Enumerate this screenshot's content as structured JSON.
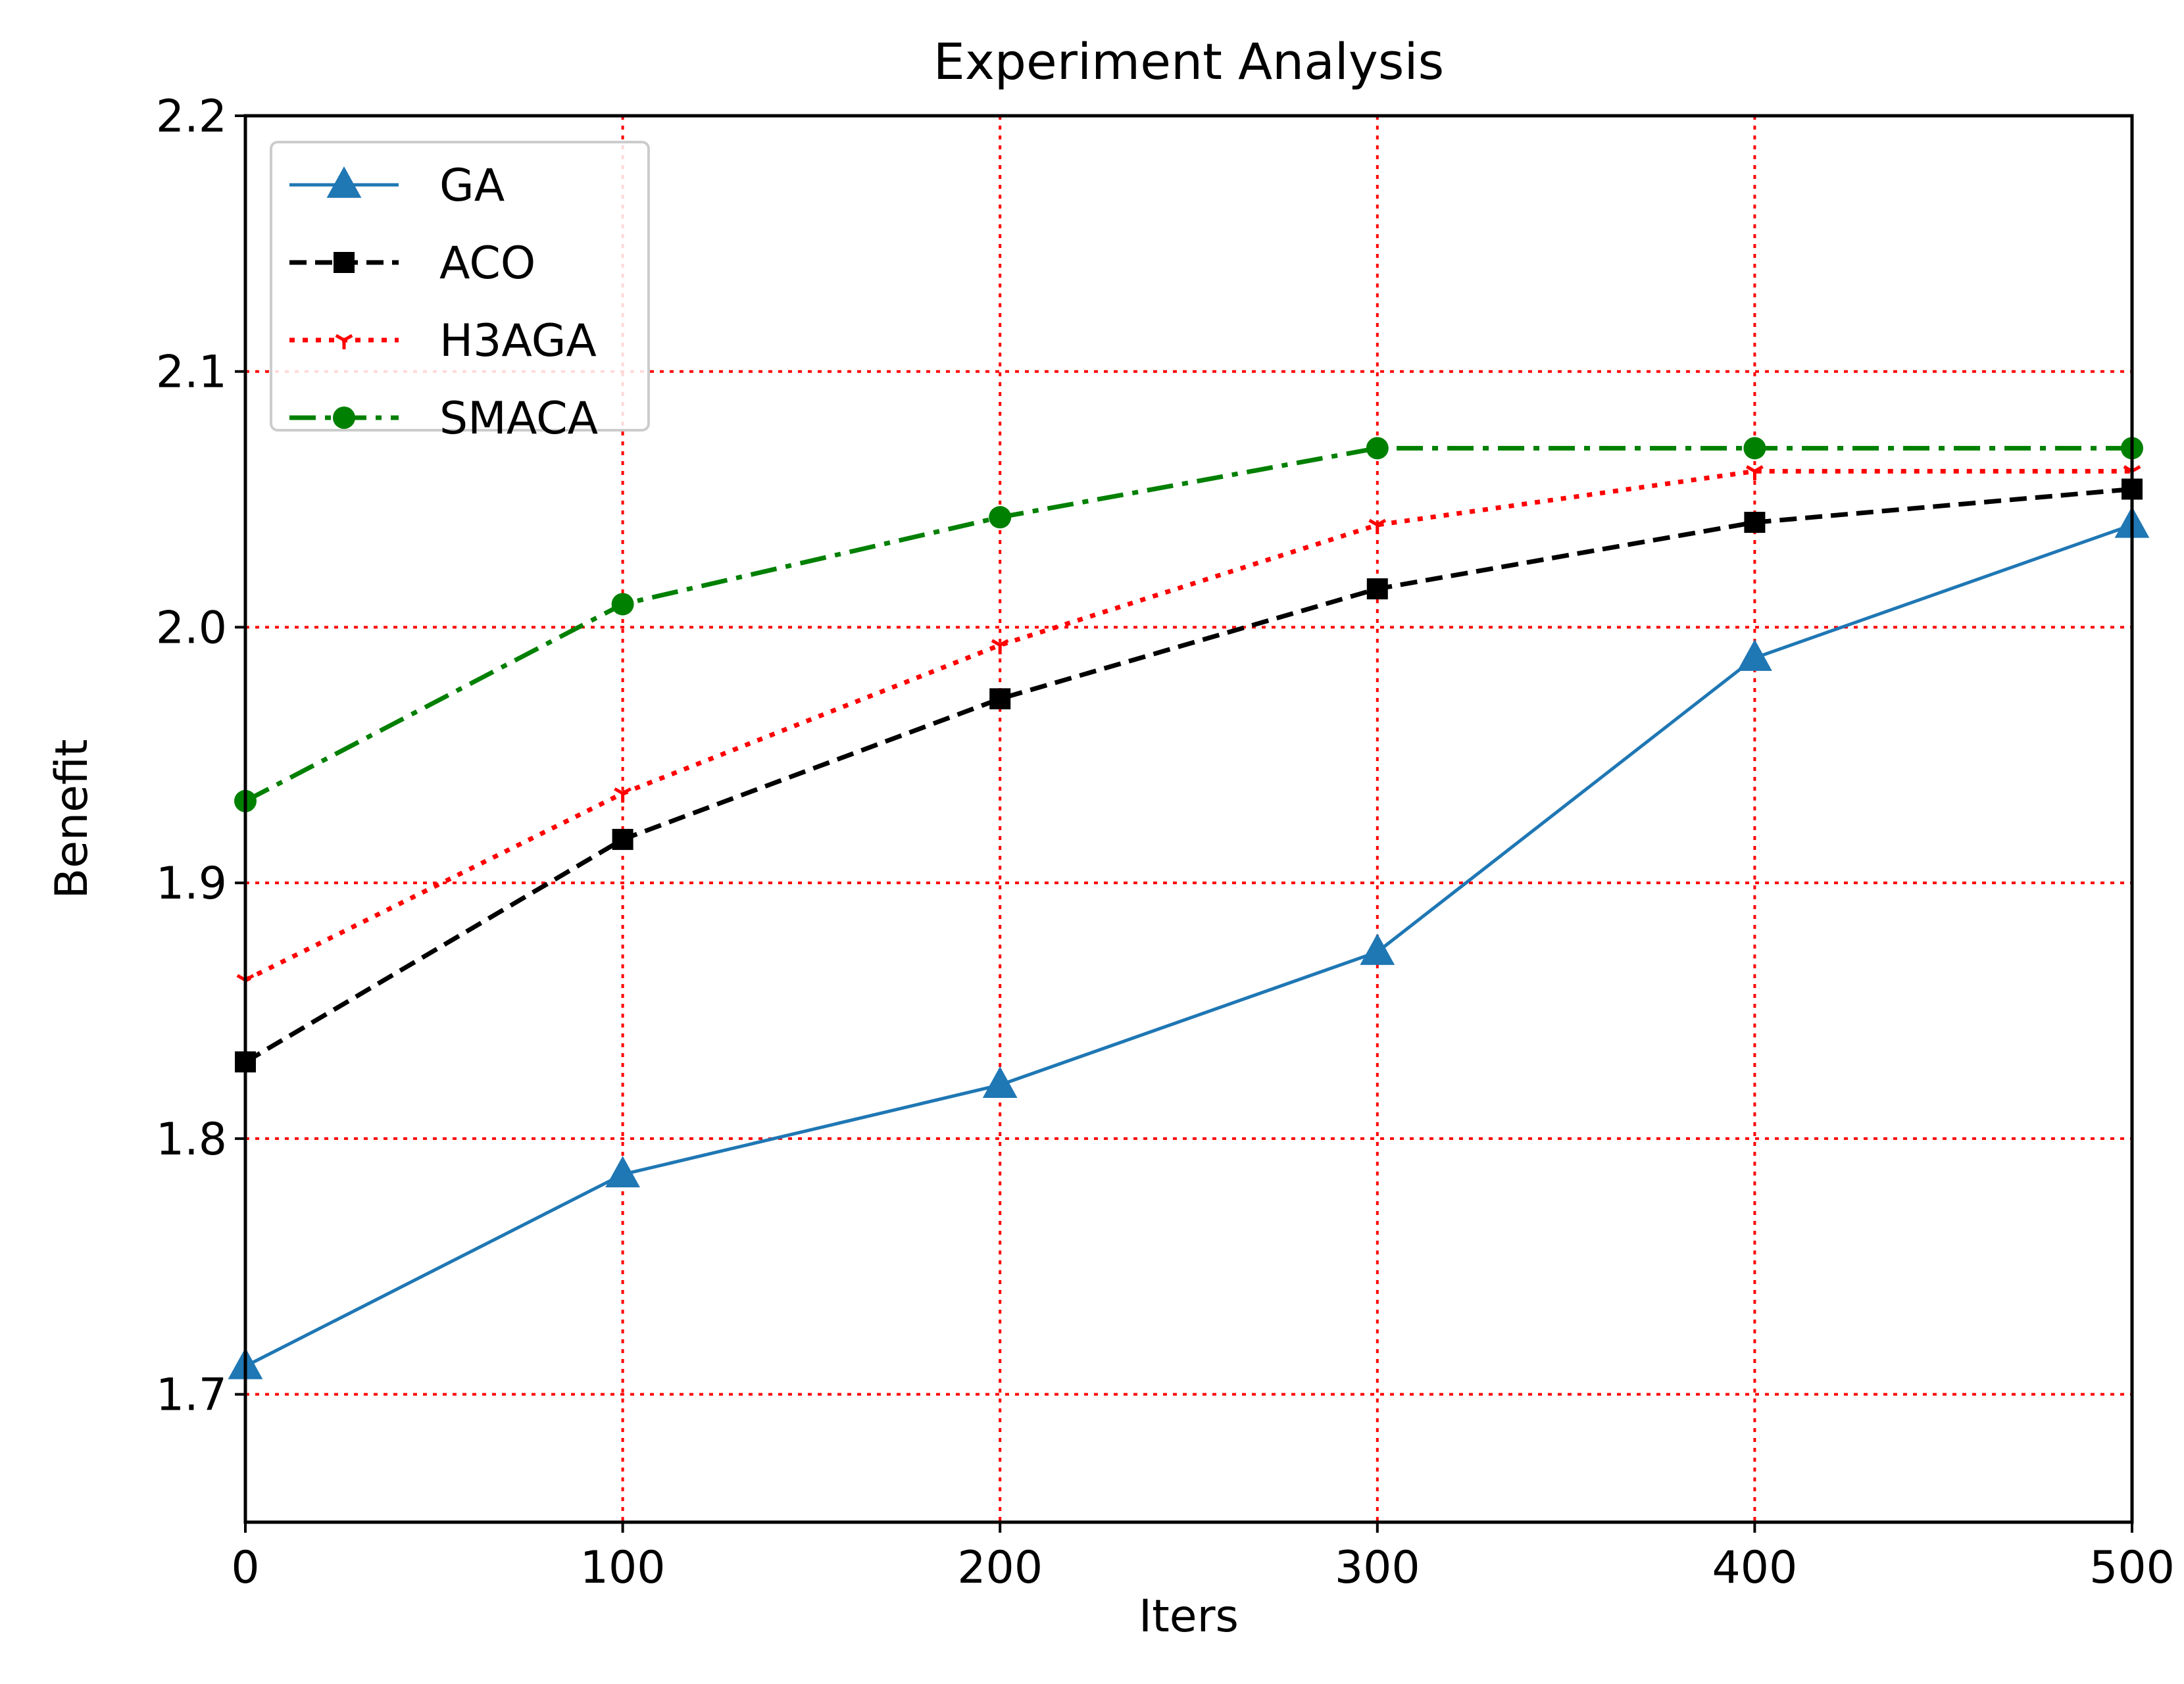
{
  "chart_data": {
    "type": "line",
    "title": "Experiment Analysis",
    "xlabel": "Iters",
    "ylabel": "Benefit",
    "xlim": [
      0,
      500
    ],
    "ylim": [
      1.65,
      2.2
    ],
    "x": [
      0,
      100,
      200,
      300,
      400,
      500
    ],
    "x_ticks": [
      0,
      100,
      200,
      300,
      400,
      500
    ],
    "x_tick_labels": [
      "0",
      "100",
      "200",
      "300",
      "400",
      "500"
    ],
    "y_ticks": [
      1.7,
      1.8,
      1.9,
      2.0,
      2.1,
      2.2
    ],
    "y_tick_labels": [
      "1.7",
      "1.8",
      "1.9",
      "2.0",
      "2.1",
      "2.2"
    ],
    "grid": true,
    "grid_style": "dotted",
    "grid_color": "#ff0000",
    "legend_position": "top-left",
    "series": [
      {
        "name": "GA",
        "values": [
          1.711,
          1.786,
          1.821,
          1.873,
          1.988,
          2.04
        ],
        "color": "#1f77b4",
        "line": "solid",
        "marker": "triangle"
      },
      {
        "name": "ACO",
        "values": [
          1.83,
          1.917,
          1.972,
          2.015,
          2.041,
          2.054
        ],
        "color": "#000000",
        "line": "dashed",
        "marker": "square"
      },
      {
        "name": "H3AGA",
        "values": [
          1.862,
          1.935,
          1.993,
          2.04,
          2.061,
          2.061
        ],
        "color": "#ff0000",
        "line": "dotted",
        "marker": "tri-down"
      },
      {
        "name": "SMACA",
        "values": [
          1.932,
          2.009,
          2.043,
          2.07,
          2.07,
          2.07
        ],
        "color": "#008000",
        "line": "dashdot",
        "marker": "circle"
      }
    ]
  }
}
